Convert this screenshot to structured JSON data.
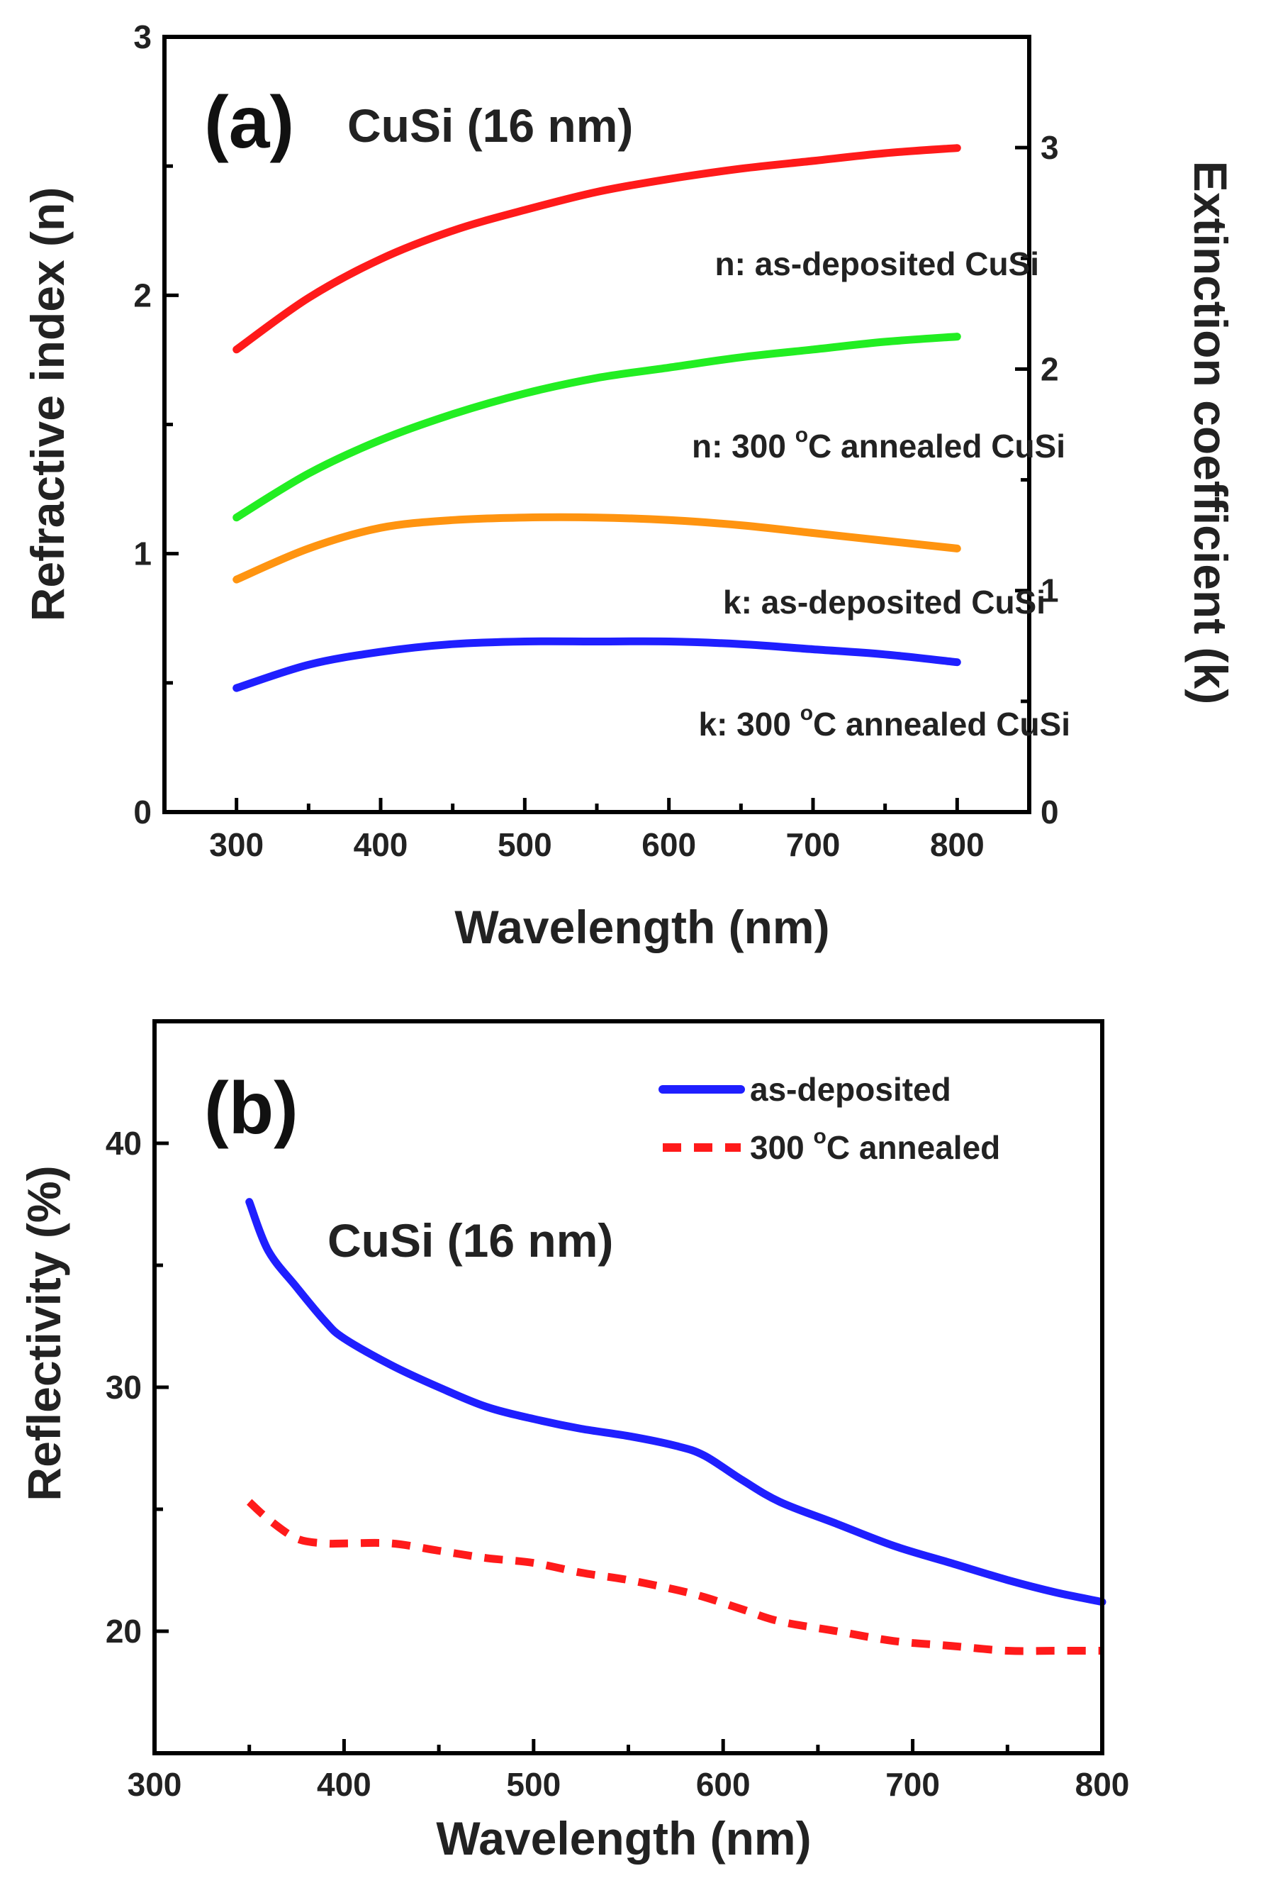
{
  "chart_data": [
    {
      "type": "line",
      "panel_label": "(a)",
      "sample_label": "CuSi (16 nm)",
      "sample_label_color": "#1f1fff",
      "xlabel": "Wavelength (nm)",
      "ylabel": "Refractive index (n)",
      "y2label": "Extinction coefficient (k)",
      "xlim": [
        250,
        850
      ],
      "ylim": [
        0,
        3
      ],
      "y2lim": [
        0,
        3.5
      ],
      "xticks": [
        "300",
        "400",
        "500",
        "600",
        "700",
        "800"
      ],
      "xtick_values": [
        300,
        400,
        500,
        600,
        700,
        800
      ],
      "yticks": [
        "0",
        "1",
        "2",
        "3"
      ],
      "ytick_values": [
        0,
        1,
        2,
        3
      ],
      "y2ticks": [
        "0",
        "1",
        "2",
        "3"
      ],
      "y2tick_values": [
        0,
        1,
        2,
        3
      ],
      "x": [
        300,
        350,
        400,
        450,
        500,
        550,
        600,
        650,
        700,
        750,
        800
      ],
      "series": [
        {
          "name": "n: as-deposited CuSi",
          "axis": "left",
          "color": "#ff1a1a",
          "values": [
            1.79,
            1.99,
            2.14,
            2.25,
            2.33,
            2.4,
            2.45,
            2.49,
            2.52,
            2.55,
            2.57
          ]
        },
        {
          "name": "n: 300 °C annealed CuSi",
          "axis": "left",
          "color": "#22ee22",
          "values": [
            1.14,
            1.31,
            1.44,
            1.54,
            1.62,
            1.68,
            1.72,
            1.76,
            1.79,
            1.82,
            1.84
          ]
        },
        {
          "name": "k: as-deposited CuSi",
          "axis": "left",
          "color": "#ff9410",
          "values": [
            0.9,
            1.02,
            1.1,
            1.13,
            1.14,
            1.14,
            1.13,
            1.11,
            1.08,
            1.05,
            1.02
          ]
        },
        {
          "name": "k: 300 °C annealed CuSi",
          "axis": "left",
          "color": "#1f1fff",
          "values": [
            0.48,
            0.57,
            0.62,
            0.65,
            0.66,
            0.66,
            0.66,
            0.65,
            0.63,
            0.61,
            0.58
          ]
        }
      ],
      "annotations": [
        {
          "key": "n_as",
          "prefix": "n: as-deposited CuSi",
          "sup": "",
          "suffix": ""
        },
        {
          "key": "n_ann",
          "prefix": "n: 300 ",
          "sup": "o",
          "suffix": "C annealed CuSi"
        },
        {
          "key": "k_as",
          "prefix": "k: as-deposited CuSi",
          "sup": "",
          "suffix": ""
        },
        {
          "key": "k_ann",
          "prefix": "k: 300 ",
          "sup": "o",
          "suffix": "C annealed CuSi"
        }
      ]
    },
    {
      "type": "line",
      "panel_label": "(b)",
      "sample_label": "CuSi (16 nm)",
      "sample_label_color": "#159615",
      "xlabel": "Wavelength (nm)",
      "ylabel": "Reflectivity (%)",
      "xlim": [
        300,
        800
      ],
      "ylim": [
        15,
        45
      ],
      "xticks": [
        "300",
        "400",
        "500",
        "600",
        "700",
        "800"
      ],
      "xtick_values": [
        300,
        400,
        500,
        600,
        700,
        800
      ],
      "yticks": [
        "20",
        "30",
        "40"
      ],
      "ytick_values": [
        20,
        30,
        40
      ],
      "x": [
        350,
        360,
        375,
        390,
        400,
        425,
        450,
        475,
        500,
        525,
        550,
        575,
        590,
        610,
        630,
        660,
        690,
        720,
        750,
        775,
        800
      ],
      "series": [
        {
          "name": "as-deposited",
          "style": "solid",
          "color": "#1f1fff",
          "values": [
            37.6,
            35.6,
            34.1,
            32.7,
            32.0,
            30.9,
            30.0,
            29.2,
            28.7,
            28.3,
            28.0,
            27.6,
            27.2,
            26.2,
            25.3,
            24.4,
            23.5,
            22.8,
            22.1,
            21.6,
            21.2
          ]
        },
        {
          "name": "300 °C annealed",
          "style": "dashed",
          "color": "#ff1a1a",
          "values": [
            25.3,
            24.6,
            23.8,
            23.6,
            23.6,
            23.6,
            23.3,
            23.0,
            22.8,
            22.4,
            22.1,
            21.7,
            21.4,
            20.9,
            20.4,
            20.0,
            19.6,
            19.4,
            19.2,
            19.2,
            19.2
          ]
        }
      ],
      "legend": [
        {
          "key": "as",
          "prefix": "as-deposited",
          "sup": "",
          "suffix": ""
        },
        {
          "key": "ann",
          "prefix": "300 ",
          "sup": "o",
          "suffix": "C annealed"
        }
      ]
    }
  ]
}
